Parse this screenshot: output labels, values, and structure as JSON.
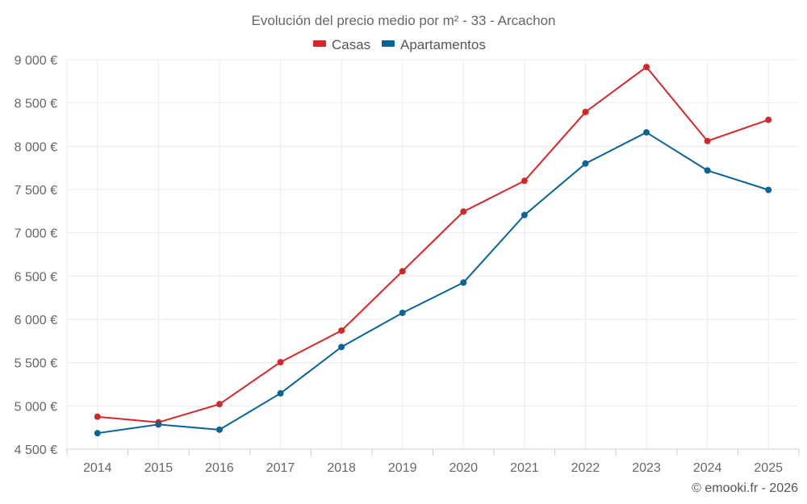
{
  "chart_data": {
    "type": "line",
    "title": "Evolución del precio medio por m² - 33 - Arcachon",
    "xlabel": "",
    "ylabel": "",
    "categories": [
      "2014",
      "2015",
      "2016",
      "2017",
      "2018",
      "2019",
      "2020",
      "2021",
      "2022",
      "2023",
      "2024",
      "2025"
    ],
    "ylim": [
      4500,
      9000
    ],
    "y_ticks": [
      4500,
      5000,
      5500,
      6000,
      6500,
      7000,
      7500,
      8000,
      8500,
      9000
    ],
    "y_tick_labels": [
      "4 500 €",
      "5 000 €",
      "5 500 €",
      "6 000 €",
      "6 500 €",
      "7 000 €",
      "7 500 €",
      "8 000 €",
      "8 500 €",
      "9 000 €"
    ],
    "grid": true,
    "legend_position": "top-center",
    "series": [
      {
        "name": "Casas",
        "color": "#d62728",
        "values": [
          4875,
          4810,
          5020,
          5505,
          5870,
          6555,
          7245,
          7600,
          8395,
          8915,
          8060,
          8305
        ]
      },
      {
        "name": "Apartamentos",
        "color": "#0a6596",
        "values": [
          4685,
          4785,
          4725,
          5145,
          5680,
          6075,
          6425,
          7205,
          7800,
          8160,
          7720,
          7495
        ]
      }
    ]
  },
  "credit": "© emooki.fr - 2026"
}
